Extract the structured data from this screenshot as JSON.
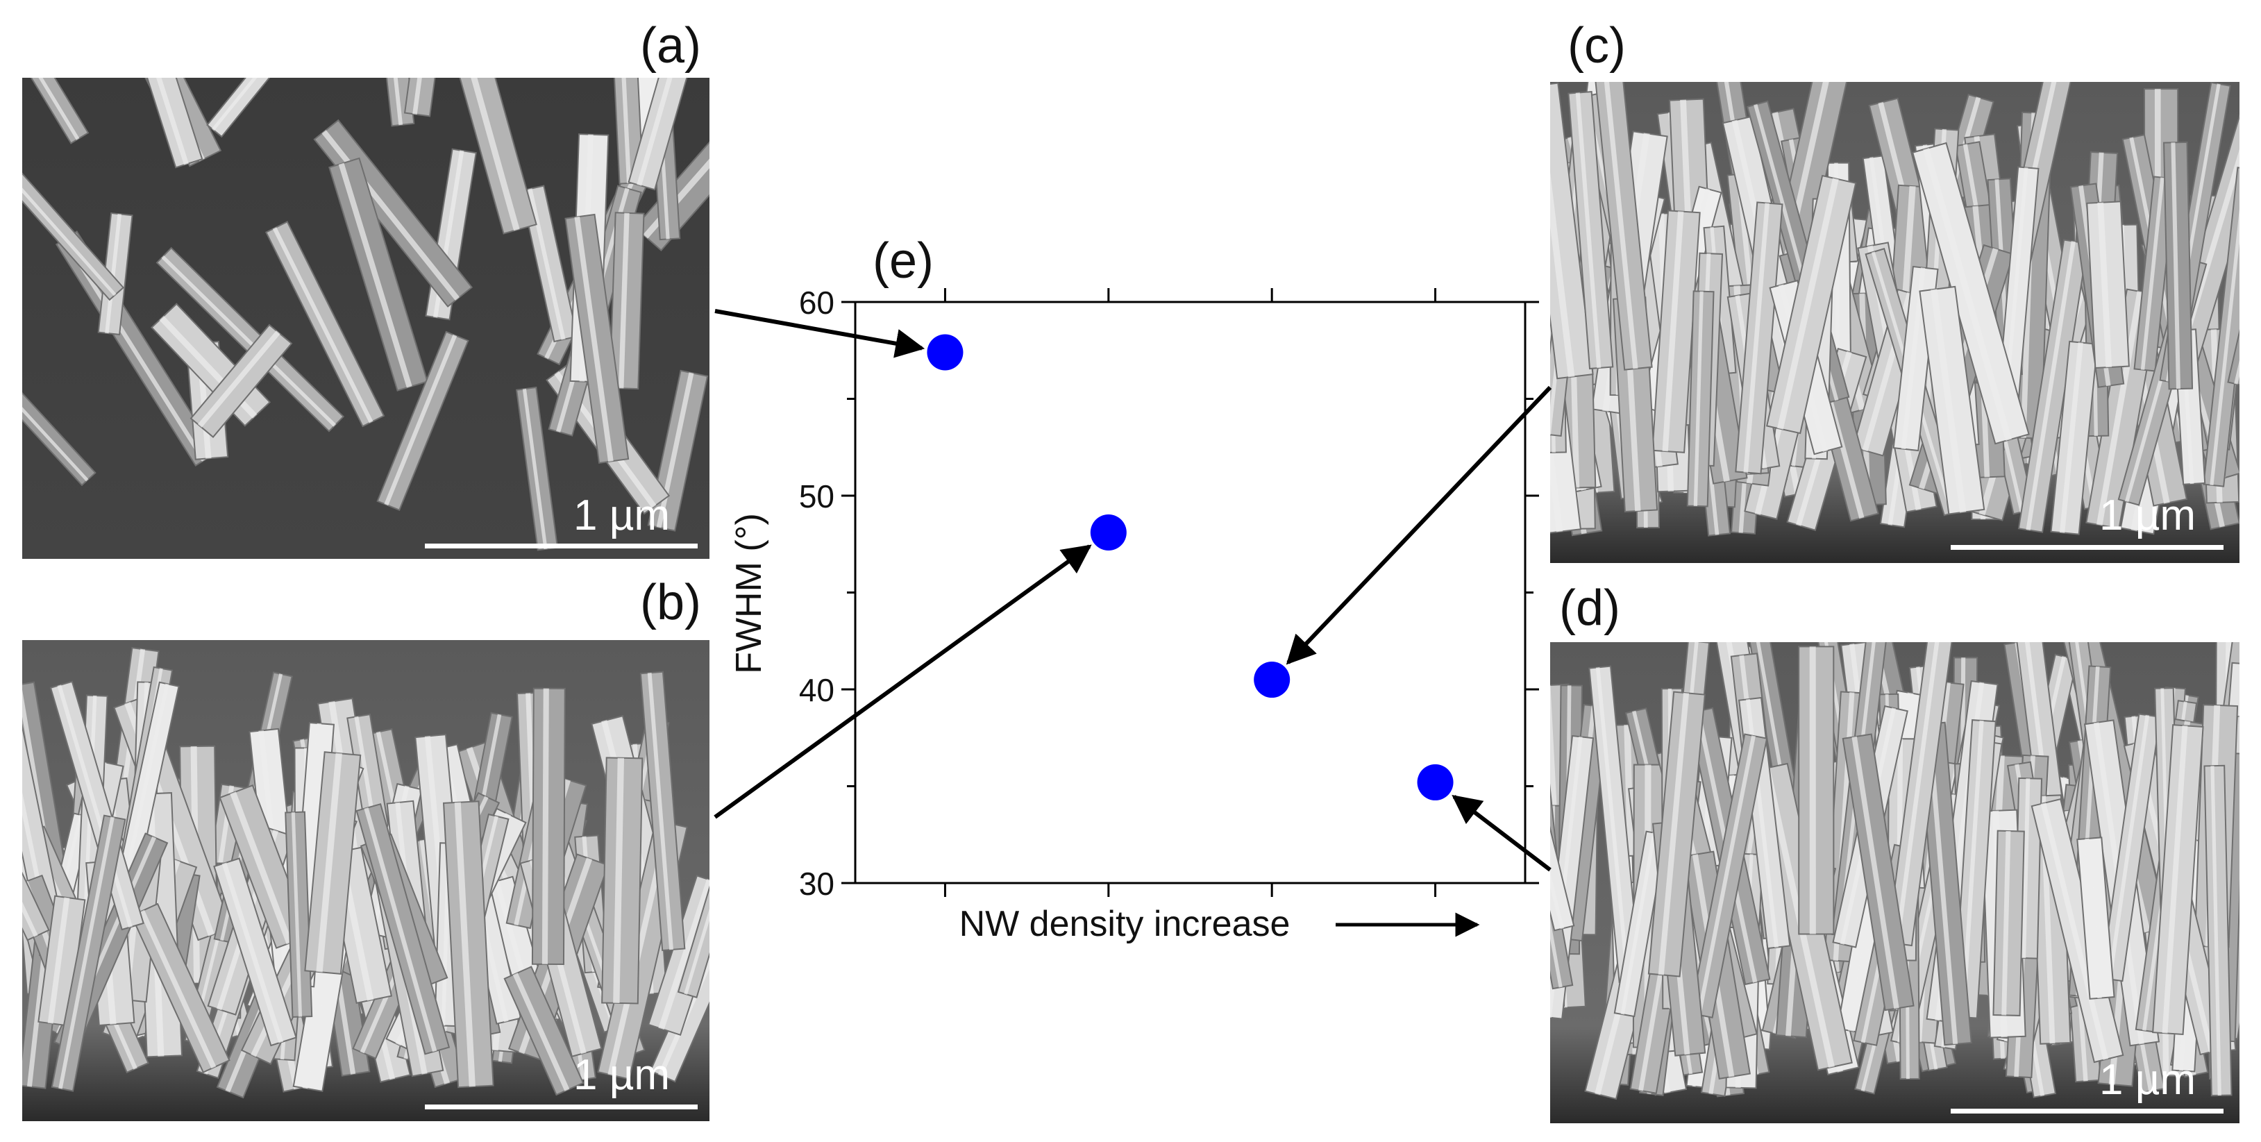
{
  "panels": {
    "a": {
      "label": "(a)",
      "scale": "1 µm"
    },
    "b": {
      "label": "(b)",
      "scale": "1 µm"
    },
    "c": {
      "label": "(c)",
      "scale": "1 µm"
    },
    "d": {
      "label": "(d)",
      "scale": "1 µm"
    },
    "e": {
      "label": "(e)"
    }
  },
  "colors": {
    "marker": "#0000ff",
    "sem_dark": "#3a3a3a",
    "sem_rod": "#c9c9c9"
  },
  "chart_data": {
    "type": "scatter",
    "title": "",
    "xlabel": "NW density increase",
    "ylabel": "FWHM (°)",
    "x": [
      1,
      2,
      3,
      4
    ],
    "y": [
      57.4,
      48.1,
      40.5,
      35.2
    ],
    "point_labels": [
      "a",
      "b",
      "c",
      "d"
    ],
    "ylim": [
      30,
      60
    ],
    "xlim": [
      0.45,
      4.55
    ],
    "yticks": [
      30,
      40,
      50,
      60
    ],
    "ytick_labels": [
      "30",
      "40",
      "50",
      "60"
    ],
    "xticks": [
      1,
      2,
      3,
      4
    ],
    "grid": false,
    "legend": "none"
  }
}
